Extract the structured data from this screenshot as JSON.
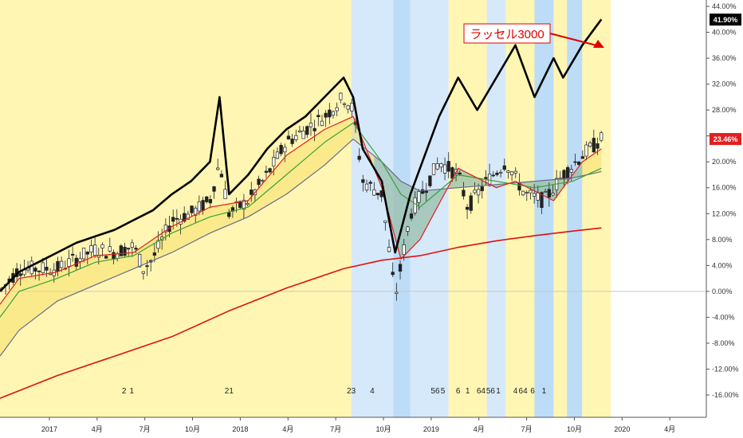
{
  "chart_data": {
    "type": "line",
    "title": "",
    "x_tick_labels": [
      "2017",
      "4月",
      "7月",
      "10月",
      "2018",
      "4月",
      "7月",
      "10月",
      "2019",
      "4月",
      "7月",
      "10月",
      "2020",
      "4月"
    ],
    "y_axis": {
      "ylim": [
        -18,
        45
      ],
      "unit": "%"
    },
    "y_tick_labels": [
      "44.00%",
      "40.00%",
      "36.00%",
      "32.00%",
      "28.00%",
      "24.00%",
      "20.00%",
      "16.00%",
      "12.00%",
      "8.00%",
      "4.00%",
      "0.00%",
      "-4.00%",
      "-8.00%",
      "-12.00%",
      "-16.00%"
    ],
    "y_tick_values": [
      44,
      40,
      36,
      32,
      28,
      24,
      20,
      16,
      12,
      8,
      4,
      0,
      -4,
      -8,
      -12,
      -16
    ],
    "series": [
      {
        "name": "ラッセル3000",
        "color": "#000000",
        "role": "comparison",
        "points": [
          [
            2016.9,
            0
          ],
          [
            2017.0,
            3
          ],
          [
            2017.1,
            4.5
          ],
          [
            2017.2,
            6
          ],
          [
            2017.3,
            7.5
          ],
          [
            2017.4,
            8.5
          ],
          [
            2017.5,
            9.5
          ],
          [
            2017.6,
            11
          ],
          [
            2017.7,
            12.5
          ],
          [
            2017.8,
            15
          ],
          [
            2017.9,
            17
          ],
          [
            2018.0,
            20
          ],
          [
            2018.05,
            30
          ],
          [
            2018.1,
            15
          ],
          [
            2018.2,
            18
          ],
          [
            2018.3,
            22
          ],
          [
            2018.4,
            25
          ],
          [
            2018.5,
            27
          ],
          [
            2018.6,
            30
          ],
          [
            2018.7,
            33
          ],
          [
            2018.75,
            30
          ],
          [
            2018.8,
            22
          ],
          [
            2018.9,
            17
          ],
          [
            2018.97,
            6
          ],
          [
            2019.05,
            15
          ],
          [
            2019.2,
            27
          ],
          [
            2019.3,
            33
          ],
          [
            2019.4,
            28
          ],
          [
            2019.5,
            33
          ],
          [
            2019.6,
            38
          ],
          [
            2019.7,
            30
          ],
          [
            2019.8,
            36
          ],
          [
            2019.85,
            33
          ],
          [
            2019.95,
            38
          ],
          [
            2020.05,
            42
          ]
        ],
        "last_value_label": "41.90%"
      },
      {
        "name": "price",
        "color": "#333333",
        "role": "candles",
        "points": [
          [
            2016.9,
            0
          ],
          [
            2017.0,
            3.5
          ],
          [
            2017.1,
            3.5
          ],
          [
            2017.2,
            3.5
          ],
          [
            2017.3,
            5
          ],
          [
            2017.4,
            6.5
          ],
          [
            2017.5,
            6
          ],
          [
            2017.6,
            7
          ],
          [
            2017.65,
            3.5
          ],
          [
            2017.7,
            5
          ],
          [
            2017.8,
            11
          ],
          [
            2017.9,
            12
          ],
          [
            2018.0,
            14
          ],
          [
            2018.05,
            20
          ],
          [
            2018.1,
            12
          ],
          [
            2018.2,
            14
          ],
          [
            2018.3,
            18
          ],
          [
            2018.4,
            23
          ],
          [
            2018.5,
            25
          ],
          [
            2018.6,
            27
          ],
          [
            2018.7,
            30
          ],
          [
            2018.75,
            28
          ],
          [
            2018.8,
            17
          ],
          [
            2018.9,
            15
          ],
          [
            2018.97,
            -1
          ],
          [
            2019.05,
            12
          ],
          [
            2019.2,
            20
          ],
          [
            2019.3,
            18
          ],
          [
            2019.35,
            13
          ],
          [
            2019.45,
            17
          ],
          [
            2019.55,
            20
          ],
          [
            2019.65,
            15
          ],
          [
            2019.75,
            14
          ],
          [
            2019.85,
            18
          ],
          [
            2019.95,
            21
          ],
          [
            2020.05,
            23.5
          ]
        ],
        "last_value_label": "23.46%"
      },
      {
        "name": "ma_short",
        "color": "#e02020",
        "points": [
          [
            2016.9,
            -2
          ],
          [
            2017.0,
            2
          ],
          [
            2017.2,
            3
          ],
          [
            2017.4,
            5.5
          ],
          [
            2017.6,
            6
          ],
          [
            2017.8,
            10
          ],
          [
            2018.0,
            13
          ],
          [
            2018.2,
            14
          ],
          [
            2018.4,
            21
          ],
          [
            2018.6,
            25
          ],
          [
            2018.75,
            27
          ],
          [
            2018.9,
            16
          ],
          [
            2019.0,
            5
          ],
          [
            2019.1,
            8
          ],
          [
            2019.3,
            19
          ],
          [
            2019.5,
            16
          ],
          [
            2019.6,
            17
          ],
          [
            2019.8,
            14
          ],
          [
            2019.95,
            20
          ],
          [
            2020.05,
            22
          ]
        ]
      },
      {
        "name": "ma_mid",
        "color": "#3aa03a",
        "points": [
          [
            2016.9,
            -4
          ],
          [
            2017.0,
            0
          ],
          [
            2017.2,
            2
          ],
          [
            2017.4,
            4.5
          ],
          [
            2017.6,
            5.5
          ],
          [
            2017.8,
            9
          ],
          [
            2018.0,
            11.5
          ],
          [
            2018.2,
            13
          ],
          [
            2018.4,
            18
          ],
          [
            2018.6,
            23
          ],
          [
            2018.75,
            26
          ],
          [
            2018.9,
            20
          ],
          [
            2019.0,
            15
          ],
          [
            2019.1,
            13
          ],
          [
            2019.3,
            18
          ],
          [
            2019.5,
            17
          ],
          [
            2019.7,
            16
          ],
          [
            2019.9,
            17
          ],
          [
            2020.05,
            19
          ]
        ]
      },
      {
        "name": "ma_long",
        "color": "#6a6a8a",
        "points": [
          [
            2016.9,
            -10
          ],
          [
            2017.0,
            -6
          ],
          [
            2017.2,
            -1.5
          ],
          [
            2017.4,
            1
          ],
          [
            2017.6,
            3.5
          ],
          [
            2017.8,
            6
          ],
          [
            2018.0,
            9
          ],
          [
            2018.2,
            11.5
          ],
          [
            2018.4,
            15
          ],
          [
            2018.6,
            19.5
          ],
          [
            2018.75,
            23.5
          ],
          [
            2018.9,
            20
          ],
          [
            2019.0,
            17
          ],
          [
            2019.1,
            15.5
          ],
          [
            2019.3,
            16
          ],
          [
            2019.5,
            16.5
          ],
          [
            2019.7,
            17
          ],
          [
            2019.9,
            17.5
          ],
          [
            2020.05,
            18.5
          ]
        ]
      },
      {
        "name": "ma_200",
        "color": "#dd1111",
        "points": [
          [
            2016.9,
            -16.5
          ],
          [
            2017.2,
            -13
          ],
          [
            2017.5,
            -10
          ],
          [
            2017.8,
            -7
          ],
          [
            2018.1,
            -3
          ],
          [
            2018.4,
            0.5
          ],
          [
            2018.7,
            3.5
          ],
          [
            2018.9,
            4.8
          ],
          [
            2019.1,
            5.5
          ],
          [
            2019.3,
            6.8
          ],
          [
            2019.5,
            7.8
          ],
          [
            2019.7,
            8.6
          ],
          [
            2019.9,
            9.3
          ],
          [
            2020.05,
            9.8
          ]
        ]
      }
    ],
    "background_bands": [
      {
        "from": 2016.9,
        "to": 2018.74,
        "color": "#fff6b3"
      },
      {
        "from": 2018.74,
        "to": 2018.96,
        "color": "#d6e9fb"
      },
      {
        "from": 2018.96,
        "to": 2019.05,
        "color": "#bcdcf7"
      },
      {
        "from": 2019.05,
        "to": 2019.25,
        "color": "#d6e9fb"
      },
      {
        "from": 2019.25,
        "to": 2019.45,
        "color": "#fff6b3"
      },
      {
        "from": 2019.45,
        "to": 2019.55,
        "color": "#d6e9fb"
      },
      {
        "from": 2019.55,
        "to": 2019.7,
        "color": "#fff6b3"
      },
      {
        "from": 2019.7,
        "to": 2019.8,
        "color": "#bcdcf7"
      },
      {
        "from": 2019.8,
        "to": 2019.87,
        "color": "#fff6b3"
      },
      {
        "from": 2019.87,
        "to": 2019.95,
        "color": "#bcdcf7"
      },
      {
        "from": 2019.95,
        "to": 2020.1,
        "color": "#fff6b3"
      },
      {
        "from": 2020.1,
        "to": 2020.6,
        "color": "#ffffff"
      }
    ],
    "event_markers": [
      "2",
      "1",
      "21",
      "23",
      "4",
      "56",
      "5",
      "6",
      "1",
      "64",
      "56",
      "1",
      "4",
      "64",
      "6",
      "1"
    ],
    "annotation": {
      "text": "ラッセル3000",
      "color": "#e00000"
    },
    "grid": false
  }
}
